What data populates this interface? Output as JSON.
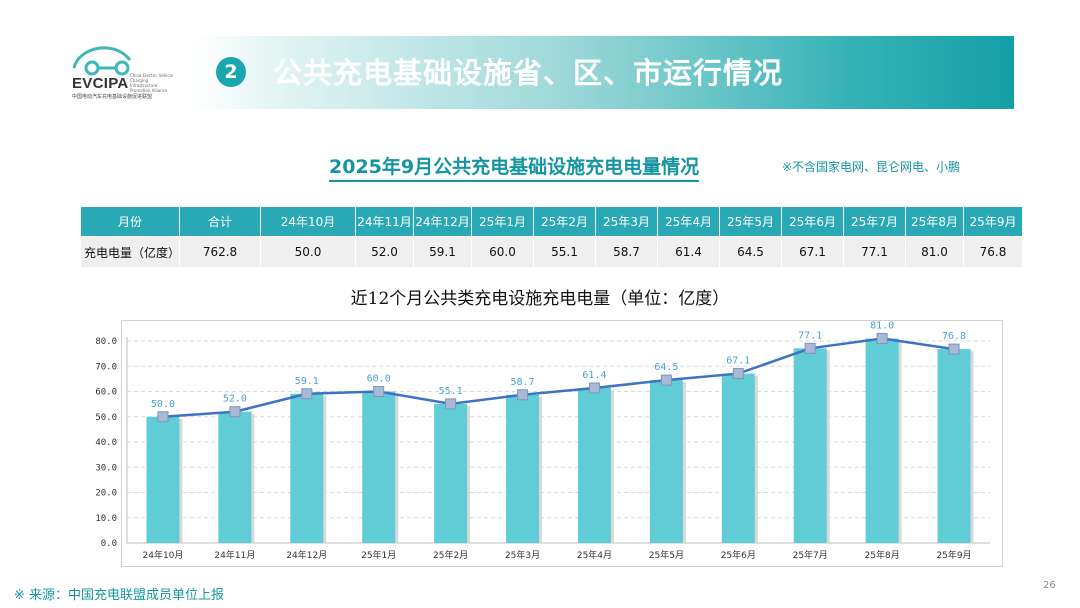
{
  "logo": {
    "name": "EVCIPA",
    "subtitle": "中国电动汽车充电基础设施促进联盟",
    "english": "China Electric Vehicle Charging Infrastructure Promotion Alliance"
  },
  "section": {
    "number": "2",
    "title": "公共充电基础设施省、区、市运行情况"
  },
  "subtitle": "2025年9月公共充电基础设施充电电量情况",
  "note": "※不含国家电网、昆仑网电、小鹏",
  "table": {
    "headers": [
      "月份",
      "合计",
      "24年10月",
      "24年11月",
      "24年12月",
      "25年1月",
      "25年2月",
      "25年3月",
      "25年4月",
      "25年5月",
      "25年6月",
      "25年7月",
      "25年8月",
      "25年9月"
    ],
    "row": [
      "充电电量（亿度）",
      "762.8",
      "50.0",
      "52.0",
      "59.1",
      "60.0",
      "55.1",
      "58.7",
      "61.4",
      "64.5",
      "67.1",
      "77.1",
      "81.0",
      "76.8"
    ]
  },
  "chart_data": {
    "type": "bar",
    "title": "近12个月公共类充电设施充电电量（单位：亿度）",
    "categories": [
      "24年10月",
      "24年11月",
      "24年12月",
      "25年1月",
      "25年2月",
      "25年3月",
      "25年4月",
      "25年5月",
      "25年6月",
      "25年7月",
      "25年8月",
      "25年9月"
    ],
    "values": [
      50.0,
      52.0,
      59.1,
      60.0,
      55.1,
      58.7,
      61.4,
      64.5,
      67.1,
      77.1,
      81.0,
      76.8
    ],
    "ylim": [
      0,
      80
    ],
    "yticks": [
      "0.0",
      "10.0",
      "20.0",
      "30.0",
      "40.0",
      "50.0",
      "60.0",
      "70.0",
      "80.0"
    ],
    "line_overlay": true,
    "grid": true,
    "xlabel": "",
    "ylabel": "",
    "colors": {
      "bar": "#5fccd6",
      "line": "#3d73c4",
      "marker": "#a8b9d6",
      "label": "#4aa0d8"
    }
  },
  "source": "※ 来源：中国充电联盟成员单位上报",
  "page_number": "26"
}
